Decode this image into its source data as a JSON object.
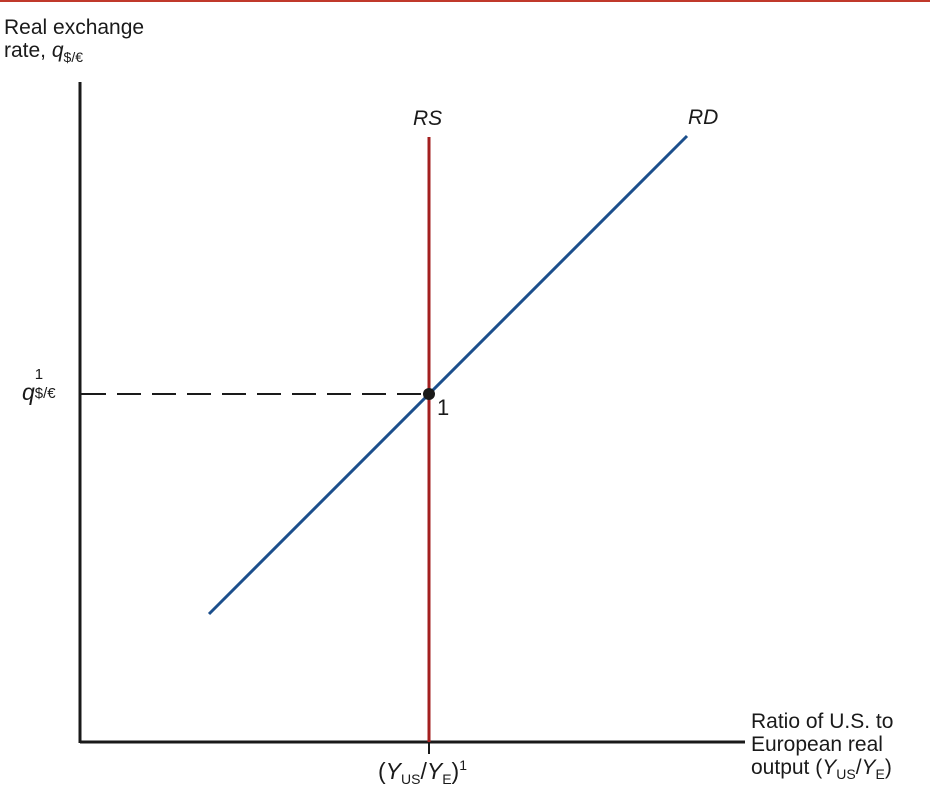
{
  "colors": {
    "rd": "#1c4f8c",
    "rs": "#a31f1f",
    "axis": "#1a1a1a",
    "accent_rule": "#c0392b"
  },
  "yaxis": {
    "line1": "Real exchange",
    "line2_prefix": "rate, ",
    "var": "q",
    "sub": "$/€"
  },
  "xaxis": {
    "line1": "Ratio of U.S. to",
    "line2": "European real",
    "line3_prefix": "output (",
    "num": "Y",
    "num_sub": "US",
    "slash": "/",
    "den": "Y",
    "den_sub": "E",
    "close": ")"
  },
  "ytick": {
    "var": "q",
    "sup": "1",
    "sub": "$/€"
  },
  "xtick": {
    "open": "(",
    "num": "Y",
    "num_sub": "US",
    "slash": "/",
    "den": "Y",
    "den_sub": "E",
    "close": ")",
    "sup": "1"
  },
  "curves": {
    "rs": "RS",
    "rd": "RD"
  },
  "equilibrium_label": "1"
}
